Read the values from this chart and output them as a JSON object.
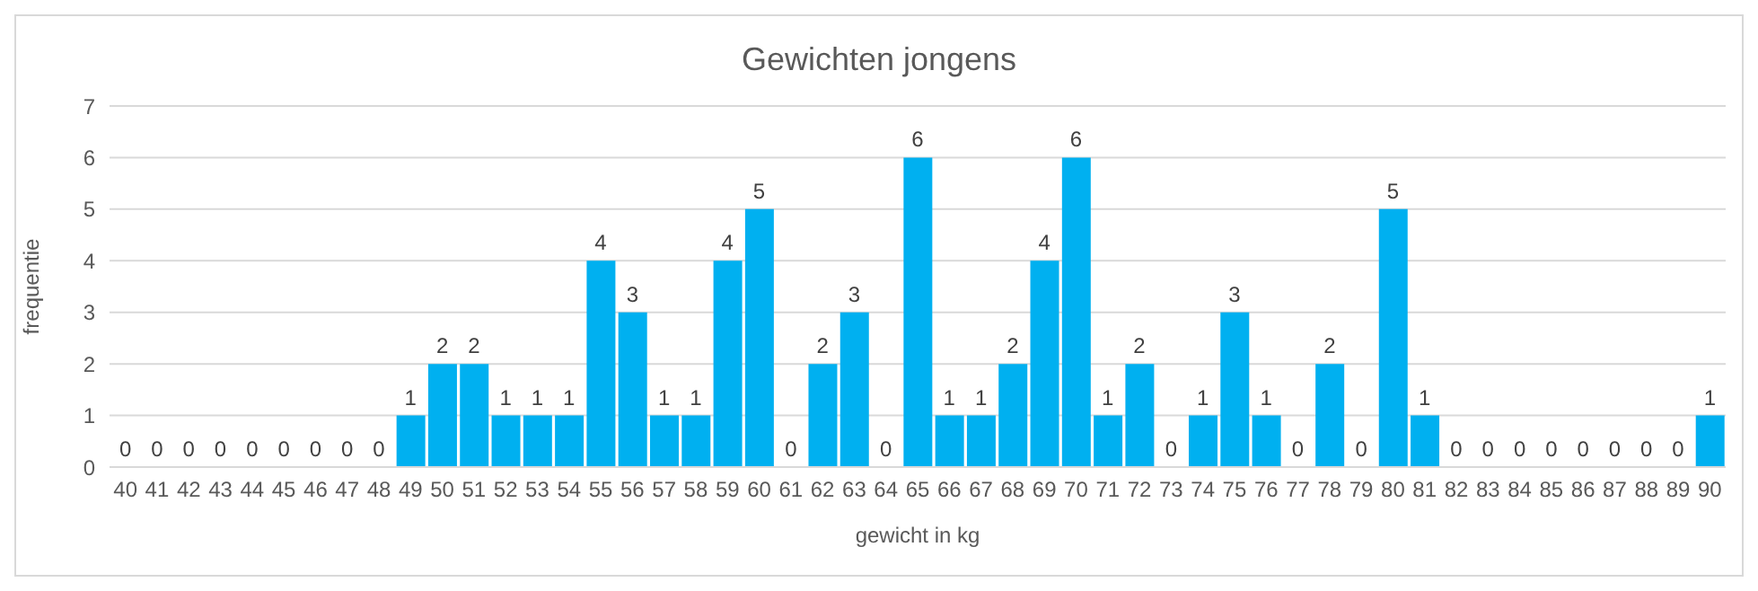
{
  "chart_data": {
    "type": "bar",
    "title": "Gewichten jongens",
    "xlabel": "gewicht in kg",
    "ylabel": "frequentie",
    "categories": [
      "40",
      "41",
      "42",
      "43",
      "44",
      "45",
      "46",
      "47",
      "48",
      "49",
      "50",
      "51",
      "52",
      "53",
      "54",
      "55",
      "56",
      "57",
      "58",
      "59",
      "60",
      "61",
      "62",
      "63",
      "64",
      "65",
      "66",
      "67",
      "68",
      "69",
      "70",
      "71",
      "72",
      "73",
      "74",
      "75",
      "76",
      "77",
      "78",
      "79",
      "80",
      "81",
      "82",
      "83",
      "84",
      "85",
      "86",
      "87",
      "88",
      "89",
      "90"
    ],
    "values": [
      0,
      0,
      0,
      0,
      0,
      0,
      0,
      0,
      0,
      1,
      2,
      2,
      1,
      1,
      1,
      4,
      3,
      1,
      1,
      4,
      5,
      0,
      2,
      3,
      0,
      6,
      1,
      1,
      2,
      4,
      6,
      1,
      2,
      0,
      1,
      3,
      1,
      0,
      2,
      0,
      5,
      1,
      0,
      0,
      0,
      0,
      0,
      0,
      0,
      0,
      1
    ],
    "color": "#00b0f0",
    "ylim": [
      0,
      7
    ],
    "yticks": [
      0,
      1,
      2,
      3,
      4,
      5,
      6,
      7
    ],
    "grid": "y",
    "data_labels": true
  }
}
